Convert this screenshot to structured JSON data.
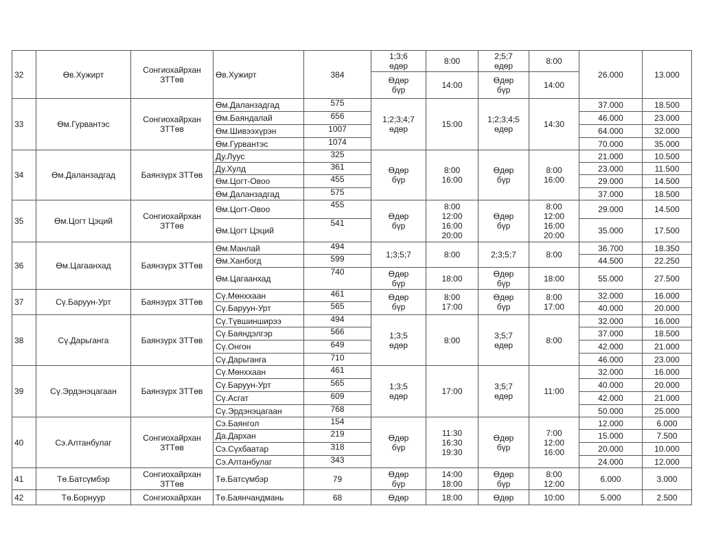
{
  "groups": [
    {
      "no": "32",
      "from": "Өв.Хужирт",
      "operator": "Сонгиохайрхан\nЗТТөв",
      "stops": [
        {
          "name": "Өв.Хужирт",
          "distance": "384"
        }
      ],
      "schedules": [
        {
          "days_out": "1;3;6\nөдөр",
          "time_out": "8:00",
          "days_back": "2;5;7\nөдөр",
          "time_back": "8:00"
        },
        {
          "days_out": "Өдөр\nбүр",
          "time_out": "14:00",
          "days_back": "Өдөр\nбүр",
          "time_back": "14:00"
        }
      ],
      "fares": [
        {
          "adult": "26.000",
          "child": "13.000"
        }
      ]
    },
    {
      "no": "33",
      "from": "Өм.Гурвантэс",
      "operator": "Сонгиохайрхан\nЗТТөв",
      "stops": [
        {
          "name": "Өм.Даланзадгад",
          "distance": "575"
        },
        {
          "name": "Өм.Баяндалай",
          "distance": "656"
        },
        {
          "name": "Өм.Шивээхүрэн",
          "distance": "1007"
        },
        {
          "name": "Өм.Гурвантэс",
          "distance": "1074"
        }
      ],
      "schedules": [
        {
          "days_out": "1;2;3;4;7\nөдөр",
          "time_out": "15:00",
          "days_back": "1;2;3;4;5\nөдөр",
          "time_back": "14:30"
        }
      ],
      "fares": [
        {
          "adult": "37.000",
          "child": "18.500"
        },
        {
          "adult": "46.000",
          "child": "23.000"
        },
        {
          "adult": "64.000",
          "child": "32.000"
        },
        {
          "adult": "70.000",
          "child": "35.000"
        }
      ]
    },
    {
      "no": "34",
      "from": "Өм.Даланзадгад",
      "operator": "Баянзүрх ЗТТөв",
      "stops": [
        {
          "name": "Ду.Луус",
          "distance": "325"
        },
        {
          "name": "Ду.Хулд",
          "distance": "361"
        },
        {
          "name": "Өм.Цогт-Овоо",
          "distance": "455"
        },
        {
          "name": "Өм.Даланзадгад",
          "distance": "575"
        }
      ],
      "schedules": [
        {
          "days_out": "Өдөр\nбүр",
          "time_out": "8:00\n16:00",
          "days_back": "Өдөр\nбүр",
          "time_back": "8:00\n16:00"
        }
      ],
      "fares": [
        {
          "adult": "21.000",
          "child": "10.500"
        },
        {
          "adult": "23.000",
          "child": "11.500"
        },
        {
          "adult": "29.000",
          "child": "14.500"
        },
        {
          "adult": "37.000",
          "child": "18.500"
        }
      ]
    },
    {
      "no": "35",
      "from": "Өм.Цогт Цэций",
      "operator": "Сонгиохайрхан\nЗТТөв",
      "stops": [
        {
          "name": "Өм.Цогт-Овоо",
          "distance": "455"
        },
        {
          "name": "Өм.Цогт Цэций",
          "distance": "541"
        }
      ],
      "schedules": [
        {
          "days_out": "Өдөр\nбүр",
          "time_out": "8:00\n12:00\n16:00\n20:00",
          "days_back": "Өдөр\nбүр",
          "time_back": "8:00\n12:00\n16:00\n20:00"
        }
      ],
      "fares": [
        {
          "adult": "29.000",
          "child": "14.500"
        },
        {
          "adult": "35.000",
          "child": "17.500"
        }
      ]
    },
    {
      "no": "36",
      "from": "Өм.Цагаанхад",
      "operator": "Баянзүрх ЗТТөв",
      "stops": [
        {
          "name": "Өм.Манлай",
          "distance": "494"
        },
        {
          "name": "Өм.Ханбогд",
          "distance": "599"
        },
        {
          "name": "Өм.Цагаанхад",
          "distance": "740"
        }
      ],
      "schedules": [
        {
          "days_out": "1;3;5;7",
          "time_out": "8:00",
          "days_back": "2;3;5;7",
          "time_back": "8:00"
        },
        {
          "days_out": "Өдөр\nбүр",
          "time_out": "18:00",
          "days_back": "Өдөр\nбүр",
          "time_back": "18:00"
        }
      ],
      "fares": [
        {
          "adult": "36.700",
          "child": "18.350"
        },
        {
          "adult": "44.500",
          "child": "22.250"
        },
        {
          "adult": "55.000",
          "child": "27.500"
        }
      ]
    },
    {
      "no": "37",
      "from": "Сү.Баруун-Урт",
      "operator": "Баянзүрх ЗТТөв",
      "stops": [
        {
          "name": "Сү.Мөнххаан",
          "distance": "461"
        },
        {
          "name": "Сү.Баруун-Урт",
          "distance": "565"
        }
      ],
      "schedules": [
        {
          "days_out": "Өдөр\nбүр",
          "time_out": "8:00\n17:00",
          "days_back": "Өдөр\nбүр",
          "time_back": "8:00\n17:00"
        }
      ],
      "fares": [
        {
          "adult": "32.000",
          "child": "16.000"
        },
        {
          "adult": "40.000",
          "child": "20.000"
        }
      ]
    },
    {
      "no": "38",
      "from": "Сү.Дарьганга",
      "operator": "Баянзүрх ЗТТөв",
      "stops": [
        {
          "name": "Сү.Түвшинширээ",
          "distance": "494"
        },
        {
          "name": "Сү.Баяндэлгэр",
          "distance": "566"
        },
        {
          "name": "Сү.Онгон",
          "distance": "649"
        },
        {
          "name": "Сү.Дарьганга",
          "distance": "710"
        }
      ],
      "schedules": [
        {
          "days_out": "1;3;5\nөдөр",
          "time_out": "8:00",
          "days_back": "3;5;7\nөдөр",
          "time_back": "8:00"
        }
      ],
      "fares": [
        {
          "adult": "32.000",
          "child": "16.000"
        },
        {
          "adult": "37.000",
          "child": "18.500"
        },
        {
          "adult": "42.000",
          "child": "21.000"
        },
        {
          "adult": "46.000",
          "child": "23.000"
        }
      ]
    },
    {
      "no": "39",
      "from": "Сү.Эрдэнэцагаан",
      "operator": "Баянзүрх ЗТТөв",
      "stops": [
        {
          "name": "Сү.Мөнххаан",
          "distance": "461"
        },
        {
          "name": "Сү.Баруун-Урт",
          "distance": "565"
        },
        {
          "name": "Сү.Асгат",
          "distance": "609"
        },
        {
          "name": "Сү.Эрдэнэцагаан",
          "distance": "768"
        }
      ],
      "schedules": [
        {
          "days_out": "1;3;5\nөдөр",
          "time_out": "17:00",
          "days_back": "3;5;7\nөдөр",
          "time_back": "11:00"
        }
      ],
      "fares": [
        {
          "adult": "32.000",
          "child": "16.000"
        },
        {
          "adult": "40.000",
          "child": "20.000"
        },
        {
          "adult": "42.000",
          "child": "21.000"
        },
        {
          "adult": "50.000",
          "child": "25.000"
        }
      ]
    },
    {
      "no": "40",
      "from": "Сэ.Алтанбулаг",
      "operator": "Сонгиохайрхан\nЗТТөв",
      "stops": [
        {
          "name": "Сэ.Баянгол",
          "distance": "154"
        },
        {
          "name": "Да.Дархан",
          "distance": "219"
        },
        {
          "name": "Сэ.Сүхбаатар",
          "distance": "318"
        },
        {
          "name": "Сэ.Алтанбулаг",
          "distance": "343"
        }
      ],
      "schedules": [
        {
          "days_out": "Өдөр\nбүр",
          "time_out": "11:30\n16:30\n19:30",
          "days_back": "Өдөр\nбүр",
          "time_back": "7:00\n12:00\n16:00"
        }
      ],
      "fares": [
        {
          "adult": "12.000",
          "child": "6.000"
        },
        {
          "adult": "15.000",
          "child": "7.500"
        },
        {
          "adult": "20.000",
          "child": "10.000"
        },
        {
          "adult": "24.000",
          "child": "12.000"
        }
      ]
    },
    {
      "no": "41",
      "from": "Тө.Батсүмбэр",
      "operator": "Сонгиохайрхан\nЗТТөв",
      "stops": [
        {
          "name": "Тө.Батсүмбэр",
          "distance": "79"
        }
      ],
      "schedules": [
        {
          "days_out": "Өдөр\nбүр",
          "time_out": "14:00\n18:00",
          "days_back": "Өдөр\nбүр",
          "time_back": "8:00\n12:00"
        }
      ],
      "fares": [
        {
          "adult": "6.000",
          "child": "3.000"
        }
      ]
    },
    {
      "no": "42",
      "from": "Тө.Борнуур",
      "operator": "Сонгиохайрхан",
      "stops": [
        {
          "name": "Тө.Баянчандмань",
          "distance": "68"
        }
      ],
      "schedules": [
        {
          "days_out": "Өдөр",
          "time_out": "18:00",
          "days_back": "Өдөр",
          "time_back": "10:00"
        }
      ],
      "fares": [
        {
          "adult": "5.000",
          "child": "2.500"
        }
      ]
    }
  ]
}
